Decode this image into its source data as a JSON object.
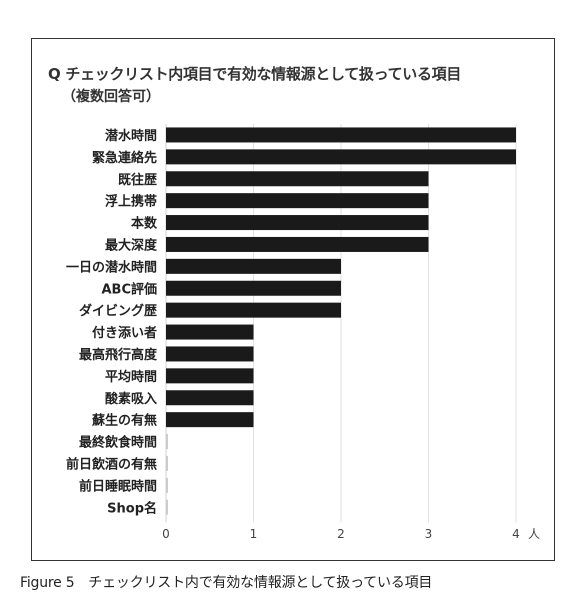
{
  "chart_title": "Q チェックリスト内項目で有効な情報源として扱っている項目",
  "chart_subtitle": "（複数回答可）",
  "figure_caption": "Figure 5　チェックリスト内で有効な情報源として扱っている項目",
  "chart_data": {
    "type": "bar",
    "orientation": "horizontal",
    "title": "Q チェックリスト内項目で有効な情報源として扱っている項目",
    "subtitle": "（複数回答可）",
    "categories": [
      "潜水時間",
      "緊急連絡先",
      "既往歴",
      "浮上携帯",
      "本数",
      "最大深度",
      "一日の潜水時間",
      "ABC評価",
      "ダイビング歴",
      "付き添い者",
      "最高飛行高度",
      "平均時間",
      "酸素吸入",
      "蘇生の有無",
      "最終飲食時間",
      "前日飲酒の有無",
      "前日睡眠時間",
      "Shop名"
    ],
    "values": [
      4,
      4,
      3,
      3,
      3,
      3,
      2,
      2,
      2,
      1,
      1,
      1,
      1,
      1,
      0,
      0,
      0,
      0
    ],
    "x_ticks": [
      "0",
      "1",
      "2",
      "3",
      "4"
    ],
    "x_unit": "人",
    "xlim": [
      0,
      4
    ],
    "grid": true,
    "bar_color": "#1a1a1a"
  }
}
